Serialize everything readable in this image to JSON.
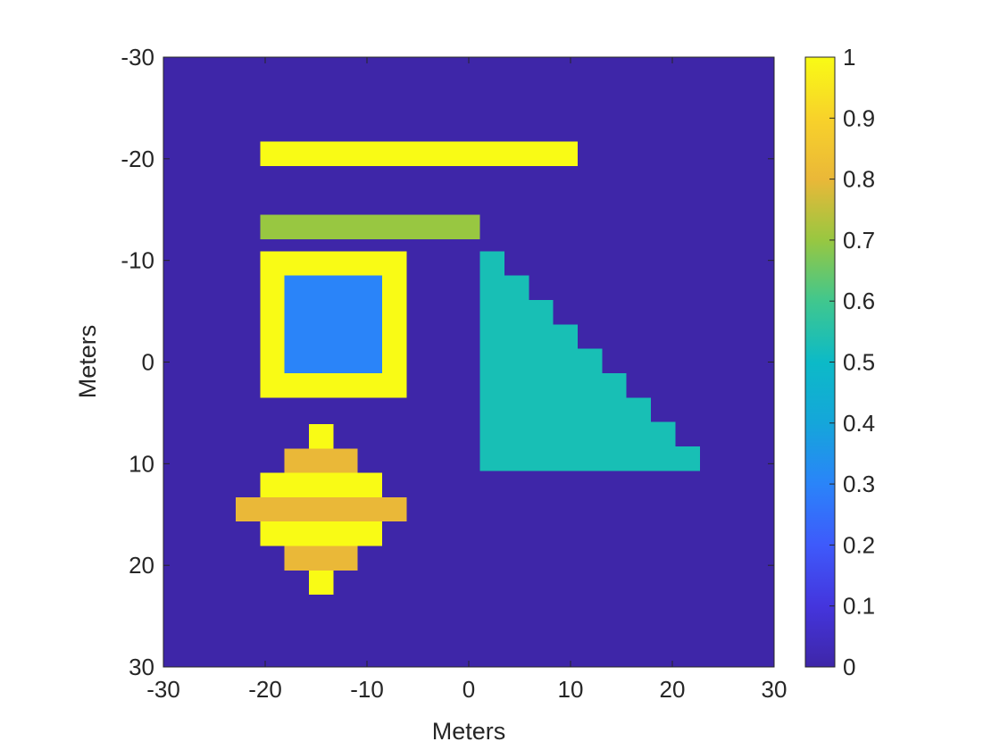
{
  "chart_data": {
    "type": "heatmap",
    "title": "",
    "xlabel": "Meters",
    "ylabel": "Meters",
    "xlim": [
      -30,
      30
    ],
    "ylim": [
      -30,
      30
    ],
    "y_direction": "reversed",
    "x_ticks": [
      -30,
      -20,
      -10,
      0,
      10,
      20,
      30
    ],
    "y_ticks": [
      -30,
      -20,
      -10,
      0,
      10,
      20,
      30
    ],
    "x_tick_labels": [
      "-30",
      "-20",
      "-10",
      "0",
      "10",
      "20",
      "30"
    ],
    "y_tick_labels": [
      "-30",
      "-20",
      "-10",
      "0",
      "10",
      "20",
      "30"
    ],
    "grid": false,
    "colormap": "parula",
    "clim": [
      0,
      1
    ],
    "colorbar": {
      "placement": "right",
      "ticks": [
        0,
        0.1,
        0.2,
        0.3,
        0.4,
        0.5,
        0.6,
        0.7,
        0.8,
        0.9,
        1
      ],
      "tick_labels": [
        "0",
        "0.1",
        "0.2",
        "0.3",
        "0.4",
        "0.5",
        "0.6",
        "0.7",
        "0.8",
        "0.9",
        "1"
      ]
    },
    "background_value": 0,
    "cell_size": 2.4,
    "regions": [
      {
        "name": "top-bar",
        "value": 1.0,
        "x": [
          -20.5,
          10.7
        ],
        "y": [
          -21.7,
          -19.3
        ]
      },
      {
        "name": "second-bar",
        "value": 0.7,
        "x": [
          -20.5,
          1.1
        ],
        "y": [
          -14.5,
          -12.1
        ]
      },
      {
        "name": "square-frame",
        "value": 1.0,
        "x": [
          -20.5,
          -6.1
        ],
        "y": [
          -10.9,
          3.5
        ]
      },
      {
        "name": "square-inner",
        "value": 0.3,
        "x": [
          -18.1,
          -8.5
        ],
        "y": [
          -8.5,
          1.1
        ]
      },
      {
        "name": "triangle-row-1",
        "value": 0.5,
        "x": [
          1.1,
          3.5
        ],
        "y": [
          -10.9,
          -8.5
        ]
      },
      {
        "name": "triangle-row-2",
        "value": 0.5,
        "x": [
          1.1,
          5.9
        ],
        "y": [
          -8.5,
          -6.1
        ]
      },
      {
        "name": "triangle-row-3",
        "value": 0.5,
        "x": [
          1.1,
          8.3
        ],
        "y": [
          -6.1,
          -3.7
        ]
      },
      {
        "name": "triangle-row-4",
        "value": 0.5,
        "x": [
          1.1,
          10.7
        ],
        "y": [
          -3.7,
          -1.3
        ]
      },
      {
        "name": "triangle-row-5",
        "value": 0.5,
        "x": [
          1.1,
          13.1
        ],
        "y": [
          -1.3,
          1.1
        ]
      },
      {
        "name": "triangle-row-6",
        "value": 0.5,
        "x": [
          1.1,
          15.5
        ],
        "y": [
          1.1,
          3.5
        ]
      },
      {
        "name": "triangle-row-7",
        "value": 0.5,
        "x": [
          1.1,
          17.9
        ],
        "y": [
          3.5,
          5.9
        ]
      },
      {
        "name": "triangle-row-8",
        "value": 0.5,
        "x": [
          1.1,
          20.3
        ],
        "y": [
          5.9,
          8.3
        ]
      },
      {
        "name": "triangle-row-9",
        "value": 0.5,
        "x": [
          1.1,
          22.7
        ],
        "y": [
          8.3,
          10.7
        ]
      },
      {
        "name": "diamond-row-1",
        "value": 1.0,
        "x": [
          -15.7,
          -13.3
        ],
        "y": [
          6.1,
          8.5
        ]
      },
      {
        "name": "diamond-row-2",
        "value": 0.8,
        "x": [
          -18.1,
          -10.9
        ],
        "y": [
          8.5,
          10.9
        ]
      },
      {
        "name": "diamond-row-3",
        "value": 1.0,
        "x": [
          -20.5,
          -8.5
        ],
        "y": [
          10.9,
          13.3
        ]
      },
      {
        "name": "diamond-row-4",
        "value": 0.8,
        "x": [
          -22.9,
          -6.1
        ],
        "y": [
          13.3,
          15.7
        ]
      },
      {
        "name": "diamond-row-5",
        "value": 1.0,
        "x": [
          -20.5,
          -8.5
        ],
        "y": [
          15.7,
          18.1
        ]
      },
      {
        "name": "diamond-row-6",
        "value": 0.8,
        "x": [
          -18.1,
          -10.9
        ],
        "y": [
          18.1,
          20.5
        ]
      },
      {
        "name": "diamond-row-7",
        "value": 1.0,
        "x": [
          -15.7,
          -13.3
        ],
        "y": [
          20.5,
          22.9
        ]
      }
    ]
  }
}
